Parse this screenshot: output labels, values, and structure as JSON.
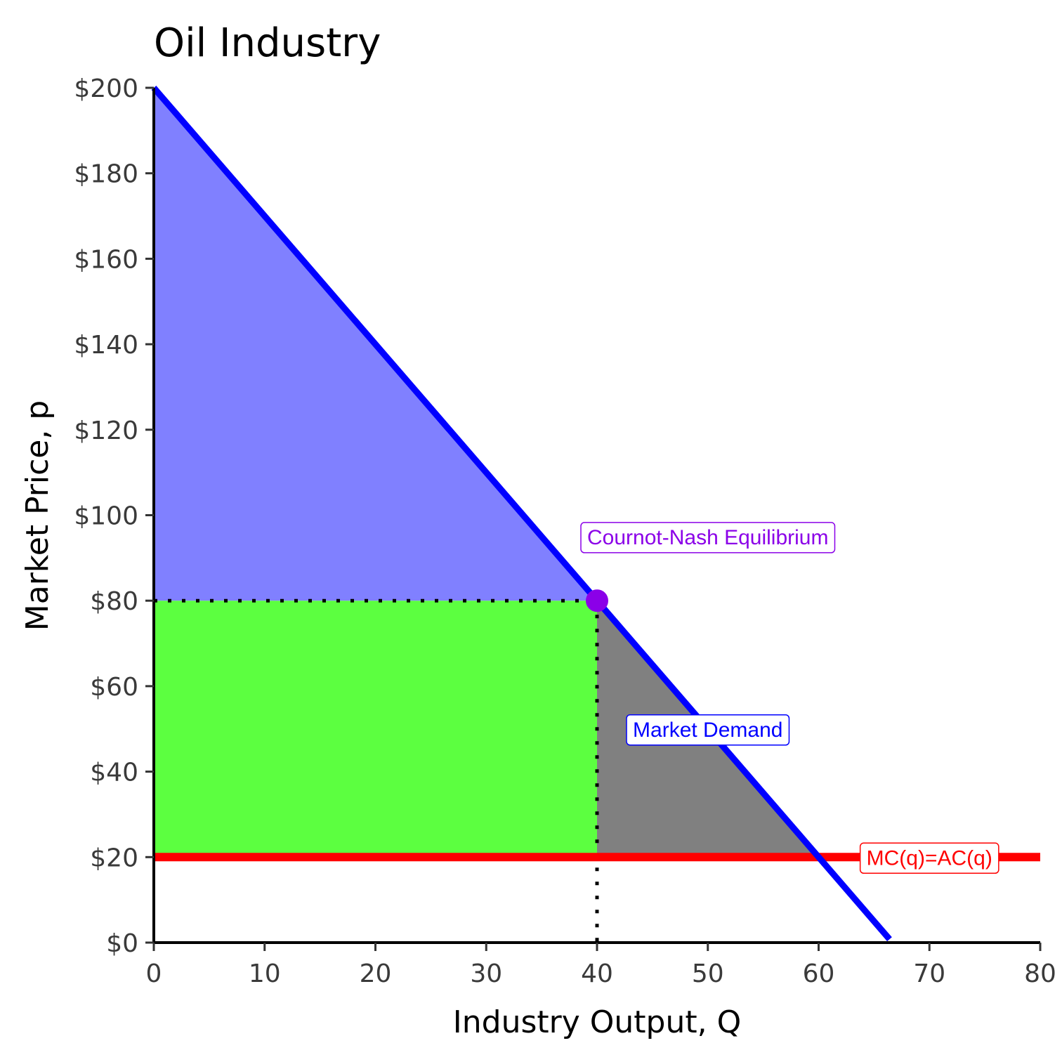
{
  "chart_data": {
    "type": "line",
    "title": "Oil Industry",
    "xlabel": "Industry Output, Q",
    "ylabel": "Market Price, p",
    "xlim": [
      0,
      80
    ],
    "ylim": [
      0,
      200
    ],
    "x_ticks": [
      0,
      10,
      20,
      30,
      40,
      50,
      60,
      70,
      80
    ],
    "y_ticks": [
      0,
      20,
      40,
      60,
      80,
      100,
      120,
      140,
      160,
      180,
      200
    ],
    "x_tick_labels": [
      "0",
      "10",
      "20",
      "30",
      "40",
      "50",
      "60",
      "70",
      "80"
    ],
    "y_tick_labels": [
      "$0",
      "$20",
      "$40",
      "$60",
      "$80",
      "$100",
      "$120",
      "$140",
      "$160",
      "$180",
      "$200"
    ],
    "grid": false,
    "series": [
      {
        "name": "Market Demand",
        "color": "#0000ff",
        "x": [
          0,
          66.4
        ],
        "y": [
          200,
          0.8
        ]
      },
      {
        "name": "MC(q)=AC(q)",
        "color": "#ff0000",
        "x": [
          0,
          80
        ],
        "y": [
          20,
          20
        ]
      }
    ],
    "regions": [
      {
        "region": "consumer-surplus",
        "color": "#8080ff",
        "points": [
          [
            0,
            200
          ],
          [
            40,
            80
          ],
          [
            0,
            80
          ]
        ]
      },
      {
        "region": "profit",
        "color": "#5cff40",
        "points": [
          [
            0,
            80
          ],
          [
            40,
            80
          ],
          [
            40,
            20
          ],
          [
            0,
            20
          ]
        ]
      },
      {
        "region": "deadweight-loss",
        "color": "#808080",
        "points": [
          [
            40,
            80
          ],
          [
            60,
            20
          ],
          [
            40,
            20
          ]
        ]
      }
    ],
    "equilibrium": {
      "label": "Cournot-Nash Equilibrium",
      "color": "#8b00e8",
      "x": 40,
      "y": 80
    },
    "labels": [
      {
        "text": "Cournot-Nash Equilibrium",
        "color": "#8b00e8",
        "x": 50,
        "y": 95
      },
      {
        "text": "Market Demand",
        "color": "#0000ff",
        "x": 50,
        "y": 50
      },
      {
        "text": "MC(q)=AC(q)",
        "color": "#ff0000",
        "x": 70,
        "y": 20
      }
    ]
  }
}
